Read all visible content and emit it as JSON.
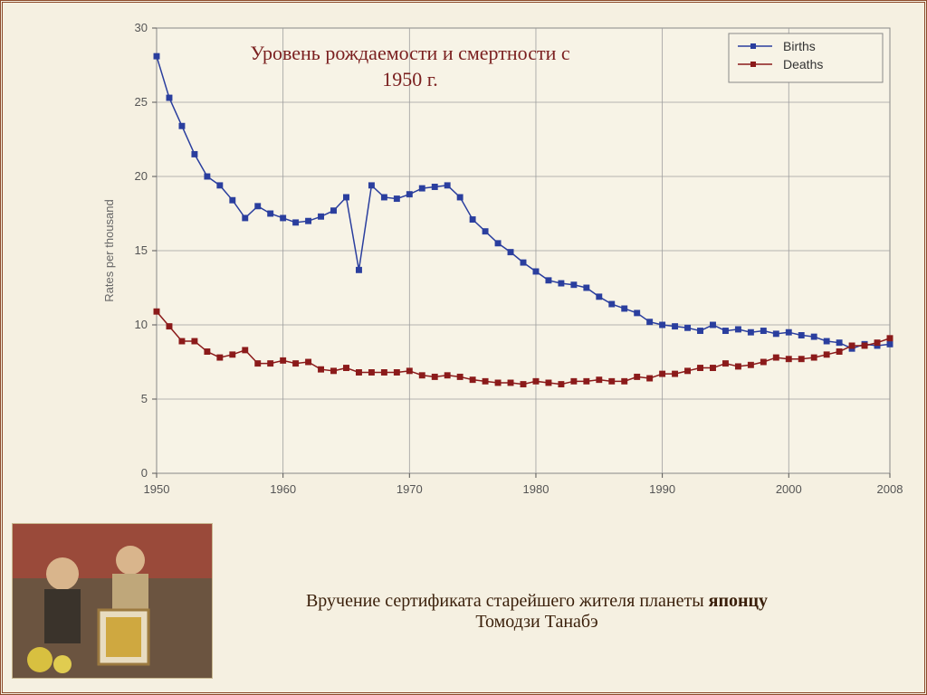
{
  "chart": {
    "type": "line",
    "title_line1": "Уровень рождаемости и смертности с",
    "title_line2": "1950 г.",
    "title_color": "#7a1f1f",
    "title_fontsize": 22,
    "ylabel": "Rates per thousand",
    "ylabel_fontsize": 13,
    "ylabel_color": "#666666",
    "xlim": [
      1950,
      2008
    ],
    "ylim": [
      0,
      30
    ],
    "ytick_step": 5,
    "xticks": [
      1950,
      1960,
      1970,
      1980,
      1990,
      2000,
      2008
    ],
    "background_color": "#f5f1e3",
    "plot_background": "#f7f3e6",
    "grid_color": "#9e9e9e",
    "axis_color": "#555555",
    "border_color": "#888888",
    "tick_label_color": "#555555",
    "tick_label_fontsize": 13,
    "line_width": 1.5,
    "marker_size": 3.2,
    "marker_style": "square",
    "series": [
      {
        "name": "Births",
        "color": "#2a3e9e",
        "marker_fill": "#2a3e9e",
        "years": [
          1950,
          1951,
          1952,
          1953,
          1954,
          1955,
          1956,
          1957,
          1958,
          1959,
          1960,
          1961,
          1962,
          1963,
          1964,
          1965,
          1966,
          1967,
          1968,
          1969,
          1970,
          1971,
          1972,
          1973,
          1974,
          1975,
          1976,
          1977,
          1978,
          1979,
          1980,
          1981,
          1982,
          1983,
          1984,
          1985,
          1986,
          1987,
          1988,
          1989,
          1990,
          1991,
          1992,
          1993,
          1994,
          1995,
          1996,
          1997,
          1998,
          1999,
          2000,
          2001,
          2002,
          2003,
          2004,
          2005,
          2006,
          2007,
          2008
        ],
        "values": [
          28.1,
          25.3,
          23.4,
          21.5,
          20.0,
          19.4,
          18.4,
          17.2,
          18.0,
          17.5,
          17.2,
          16.9,
          17.0,
          17.3,
          17.7,
          18.6,
          13.7,
          19.4,
          18.6,
          18.5,
          18.8,
          19.2,
          19.3,
          19.4,
          18.6,
          17.1,
          16.3,
          15.5,
          14.9,
          14.2,
          13.6,
          13.0,
          12.8,
          12.7,
          12.5,
          11.9,
          11.4,
          11.1,
          10.8,
          10.2,
          10.0,
          9.9,
          9.8,
          9.6,
          10.0,
          9.6,
          9.7,
          9.5,
          9.6,
          9.4,
          9.5,
          9.3,
          9.2,
          8.9,
          8.8,
          8.4,
          8.7,
          8.6,
          8.7
        ]
      },
      {
        "name": "Deaths",
        "color": "#8b1a1a",
        "marker_fill": "#8b1a1a",
        "years": [
          1950,
          1951,
          1952,
          1953,
          1954,
          1955,
          1956,
          1957,
          1958,
          1959,
          1960,
          1961,
          1962,
          1963,
          1964,
          1965,
          1966,
          1967,
          1968,
          1969,
          1970,
          1971,
          1972,
          1973,
          1974,
          1975,
          1976,
          1977,
          1978,
          1979,
          1980,
          1981,
          1982,
          1983,
          1984,
          1985,
          1986,
          1987,
          1988,
          1989,
          1990,
          1991,
          1992,
          1993,
          1994,
          1995,
          1996,
          1997,
          1998,
          1999,
          2000,
          2001,
          2002,
          2003,
          2004,
          2005,
          2006,
          2007,
          2008
        ],
        "values": [
          10.9,
          9.9,
          8.9,
          8.9,
          8.2,
          7.8,
          8.0,
          8.3,
          7.4,
          7.4,
          7.6,
          7.4,
          7.5,
          7.0,
          6.9,
          7.1,
          6.8,
          6.8,
          6.8,
          6.8,
          6.9,
          6.6,
          6.5,
          6.6,
          6.5,
          6.3,
          6.2,
          6.1,
          6.1,
          6.0,
          6.2,
          6.1,
          6.0,
          6.2,
          6.2,
          6.3,
          6.2,
          6.2,
          6.5,
          6.4,
          6.7,
          6.7,
          6.9,
          7.1,
          7.1,
          7.4,
          7.2,
          7.3,
          7.5,
          7.8,
          7.7,
          7.7,
          7.8,
          8.0,
          8.2,
          8.6,
          8.6,
          8.8,
          9.1
        ]
      }
    ],
    "legend": {
      "position": "top-right",
      "labels": [
        "Births",
        "Deaths"
      ],
      "border_color": "#888888",
      "background": "#f7f3e6",
      "fontsize": 14,
      "text_color": "#333333"
    }
  },
  "caption": {
    "prefix": "Вручение сертификата старейшего жителя планеты ",
    "bold": "японцу",
    "suffix": "Томодзи Танабэ",
    "color": "#3a1f0a",
    "fontsize": 20
  },
  "photo": {
    "description": "certificate-presentation-photo",
    "placeholder_bg": "#6b5440"
  }
}
